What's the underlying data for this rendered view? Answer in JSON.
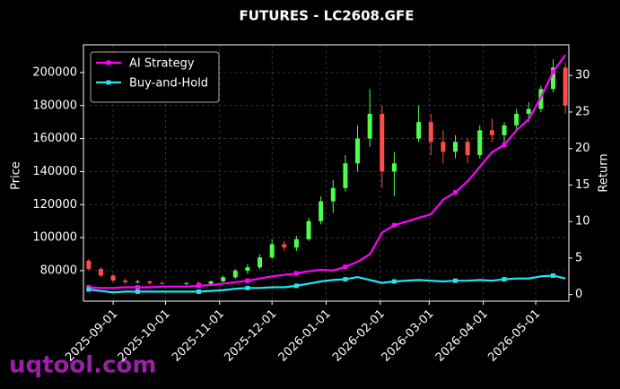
{
  "chart_data": {
    "type": "candlestick",
    "title": "FUTURES - LC2608.GFE",
    "watermark": "uqtool.com",
    "ylabel": "Price",
    "y2label": "Return",
    "x": [
      "2025-08-18",
      "2025-08-25",
      "2025-09-01",
      "2025-09-08",
      "2025-09-15",
      "2025-09-22",
      "2025-09-29",
      "2025-10-13",
      "2025-10-20",
      "2025-10-27",
      "2025-11-03",
      "2025-11-10",
      "2025-11-17",
      "2025-11-24",
      "2025-12-01",
      "2025-12-08",
      "2025-12-15",
      "2025-12-22",
      "2025-12-29",
      "2026-01-05",
      "2026-01-12",
      "2026-01-19",
      "2026-01-26",
      "2026-02-02",
      "2026-02-09",
      "2026-02-23",
      "2026-03-02",
      "2026-03-09",
      "2026-03-16",
      "2026-03-23",
      "2026-03-30",
      "2026-04-06",
      "2026-04-13",
      "2026-04-20",
      "2026-04-27",
      "2026-05-04",
      "2026-05-11",
      "2026-05-18"
    ],
    "open": [
      86000,
      81000,
      77000,
      74000,
      73000,
      73500,
      72500,
      72000,
      72500,
      72000,
      73500,
      76000,
      80000,
      82000,
      88000,
      96000,
      94000,
      99000,
      110000,
      122000,
      130000,
      145000,
      160000,
      175000,
      140000,
      160000,
      170000,
      158000,
      152000,
      158000,
      150000,
      165000,
      162000,
      168000,
      175000,
      178000,
      190000,
      203000
    ],
    "high": [
      87000,
      82000,
      78000,
      75000,
      74500,
      74000,
      73500,
      73000,
      73500,
      74000,
      77000,
      81000,
      84000,
      90000,
      99000,
      98000,
      101000,
      112000,
      125000,
      135000,
      150000,
      168000,
      190000,
      180000,
      152000,
      180000,
      175000,
      165000,
      162000,
      160000,
      168000,
      172000,
      170000,
      178000,
      182000,
      192000,
      208000,
      206000
    ],
    "low": [
      80000,
      76000,
      73000,
      72000,
      72000,
      71500,
      71500,
      71000,
      71500,
      71500,
      73000,
      75000,
      78000,
      81000,
      87000,
      92000,
      92000,
      98000,
      108000,
      115000,
      128000,
      140000,
      155000,
      130000,
      125000,
      158000,
      150000,
      145000,
      148000,
      145000,
      148000,
      158000,
      157000,
      165000,
      170000,
      176000,
      188000,
      175000
    ],
    "close": [
      81000,
      77000,
      74000,
      73000,
      73500,
      72500,
      72000,
      72500,
      72000,
      73500,
      76000,
      80000,
      82000,
      88000,
      96000,
      94000,
      99000,
      110000,
      122000,
      130000,
      145000,
      160000,
      175000,
      140000,
      145000,
      170000,
      158000,
      152000,
      158000,
      150000,
      165000,
      162000,
      168000,
      175000,
      178000,
      190000,
      203000,
      180000
    ],
    "up_color": "#4cff4c",
    "down_color": "#ff4c4c",
    "series": [
      {
        "name": "AI Strategy",
        "color": "#ff00ff",
        "axis": "y2",
        "values": [
          1.0,
          0.9,
          0.9,
          1.0,
          1.0,
          1.0,
          1.1,
          1.1,
          1.2,
          1.3,
          1.5,
          1.7,
          1.9,
          2.2,
          2.5,
          2.7,
          2.9,
          3.2,
          3.4,
          3.3,
          3.8,
          4.5,
          5.5,
          8.5,
          9.5,
          10.5,
          11.0,
          13.0,
          14.0,
          15.5,
          17.5,
          19.5,
          20.5,
          22.5,
          24.0,
          27.0,
          30.5,
          32.8
        ]
      },
      {
        "name": "Buy-and-Hold",
        "color": "#22e5f0",
        "axis": "y2",
        "values": [
          0.7,
          0.5,
          0.3,
          0.4,
          0.4,
          0.4,
          0.4,
          0.4,
          0.4,
          0.5,
          0.6,
          0.8,
          0.9,
          0.9,
          1.0,
          1.0,
          1.2,
          1.5,
          1.8,
          2.0,
          2.1,
          2.4,
          2.0,
          1.6,
          1.8,
          2.0,
          1.9,
          1.8,
          1.9,
          1.9,
          2.0,
          1.9,
          2.1,
          2.2,
          2.2,
          2.5,
          2.6,
          2.2
        ]
      }
    ],
    "xlim": [
      "2025-08-15",
      "2026-05-20"
    ],
    "xticks": [
      "2025-09-01",
      "2025-10-01",
      "2025-11-01",
      "2025-12-01",
      "2026-01-01",
      "2026-02-01",
      "2026-03-01",
      "2026-04-01",
      "2026-05-01"
    ],
    "ylim": [
      61500,
      216800
    ],
    "yticks": [
      80000,
      100000,
      120000,
      140000,
      160000,
      180000,
      200000
    ],
    "y2lim": [
      -0.9,
      34.2
    ],
    "y2ticks": [
      0,
      5,
      10,
      15,
      20,
      25,
      30
    ],
    "grid": true,
    "legend": "upper left"
  }
}
